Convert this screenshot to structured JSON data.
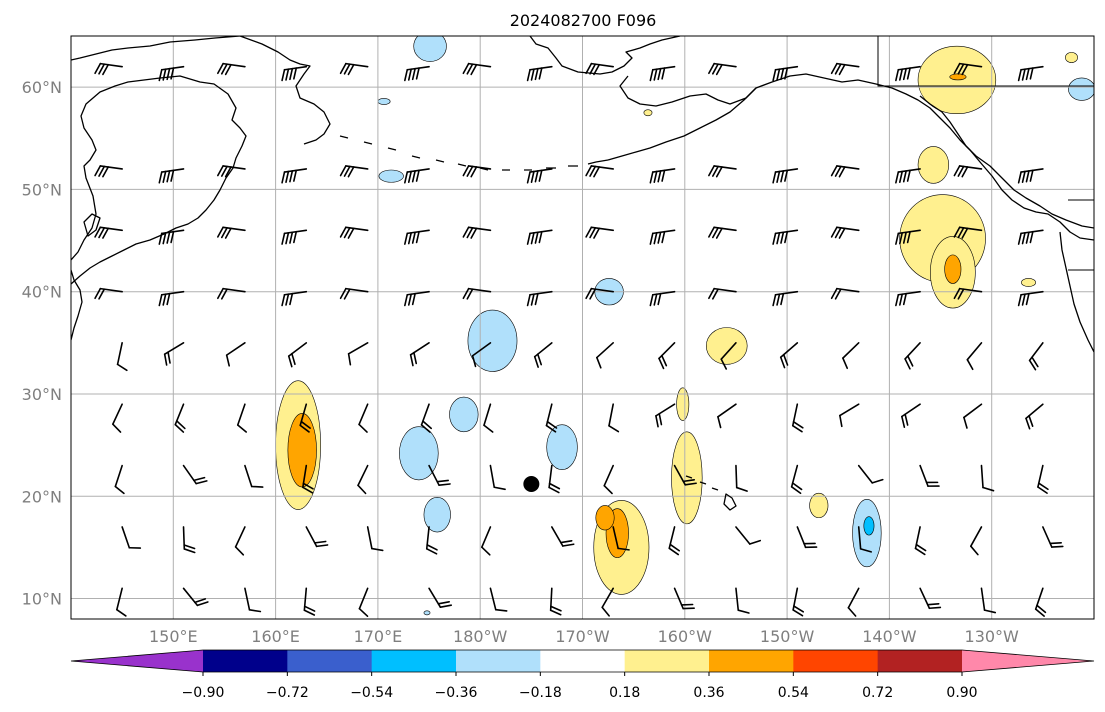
{
  "title": "2024082700 F096",
  "map": {
    "lon_range": [
      140,
      240
    ],
    "lat_range": [
      8,
      65
    ],
    "lat_lines": [
      10,
      20,
      30,
      40,
      50,
      60
    ],
    "lat_labels": [
      "10°N",
      "20°N",
      "30°N",
      "40°N",
      "50°N",
      "60°N"
    ],
    "lon_lines": [
      150,
      160,
      170,
      180,
      190,
      200,
      210,
      220,
      230
    ],
    "lon_labels": [
      "150°E",
      "160°E",
      "170°E",
      "180°W",
      "170°W",
      "160°W",
      "150°W",
      "140°W",
      "130°W"
    ],
    "storm_marker": {
      "lon": 185,
      "lat": 21.2
    }
  },
  "colorbar": {
    "ticks": [
      "−0.90",
      "−0.72",
      "−0.54",
      "−0.36",
      "−0.18",
      "0.18",
      "0.36",
      "0.54",
      "0.72",
      "0.90"
    ],
    "colors": [
      "#9932cc",
      "#00008b",
      "#3a5fcd",
      "#00bfff",
      "#b0e0fb",
      "#ffffff",
      "#fff08f",
      "#ffa500",
      "#ff4500",
      "#b22222",
      "#ff88aa"
    ]
  },
  "fill_colors": {
    "light_blue": "#b0e0fb",
    "blue": "#00bfff",
    "light_yellow": "#fff08f",
    "orange": "#ffa500"
  },
  "anomalies": [
    {
      "lon": 162.2,
      "lat": 25.0,
      "rx": 2.2,
      "ry": 6.3,
      "level": "light_yellow"
    },
    {
      "lon": 162.6,
      "lat": 24.5,
      "rx": 1.4,
      "ry": 3.6,
      "level": "orange"
    },
    {
      "lon": 174.0,
      "lat": 24.2,
      "rx": 1.9,
      "ry": 2.6,
      "level": "light_blue"
    },
    {
      "lon": 175.8,
      "lat": 18.2,
      "rx": 1.3,
      "ry": 1.7,
      "level": "light_blue"
    },
    {
      "lon": 178.4,
      "lat": 28.0,
      "rx": 1.4,
      "ry": 1.7,
      "level": "light_blue"
    },
    {
      "lon": 181.2,
      "lat": 35.2,
      "rx": 2.4,
      "ry": 3.0,
      "level": "light_blue"
    },
    {
      "lon": 192.6,
      "lat": 40.0,
      "rx": 1.4,
      "ry": 1.3,
      "level": "light_blue"
    },
    {
      "lon": 188.0,
      "lat": 24.8,
      "rx": 1.5,
      "ry": 2.2,
      "level": "light_blue"
    },
    {
      "lon": 171.3,
      "lat": 51.3,
      "rx": 1.2,
      "ry": 0.6,
      "level": "light_blue"
    },
    {
      "lon": 170.6,
      "lat": 58.6,
      "rx": 0.6,
      "ry": 0.3,
      "level": "light_blue"
    },
    {
      "lon": 193.8,
      "lat": 15.0,
      "rx": 2.7,
      "ry": 4.6,
      "level": "light_yellow"
    },
    {
      "lon": 193.4,
      "lat": 16.4,
      "rx": 1.1,
      "ry": 2.4,
      "level": "orange"
    },
    {
      "lon": 192.2,
      "lat": 17.9,
      "rx": 0.9,
      "ry": 1.2,
      "level": "orange"
    },
    {
      "lon": 200.2,
      "lat": 21.8,
      "rx": 1.5,
      "ry": 4.5,
      "level": "light_yellow"
    },
    {
      "lon": 199.8,
      "lat": 29.0,
      "rx": 0.6,
      "ry": 1.6,
      "level": "light_yellow"
    },
    {
      "lon": 204.1,
      "lat": 34.7,
      "rx": 2.0,
      "ry": 1.8,
      "level": "light_yellow"
    },
    {
      "lon": 213.1,
      "lat": 19.1,
      "rx": 0.9,
      "ry": 1.2,
      "level": "light_yellow"
    },
    {
      "lon": 217.8,
      "lat": 16.4,
      "rx": 1.4,
      "ry": 3.3,
      "level": "light_blue"
    },
    {
      "lon": 218.0,
      "lat": 17.1,
      "rx": 0.5,
      "ry": 0.9,
      "level": "blue"
    },
    {
      "lon": 226.6,
      "lat": 60.7,
      "rx": 3.8,
      "ry": 3.3,
      "level": "light_yellow"
    },
    {
      "lon": 226.7,
      "lat": 61.0,
      "rx": 0.8,
      "ry": 0.3,
      "level": "orange"
    },
    {
      "lon": 224.3,
      "lat": 52.4,
      "rx": 1.5,
      "ry": 1.8,
      "level": "light_yellow"
    },
    {
      "lon": 225.2,
      "lat": 45.2,
      "rx": 4.2,
      "ry": 4.3,
      "level": "light_yellow"
    },
    {
      "lon": 226.2,
      "lat": 41.9,
      "rx": 2.2,
      "ry": 3.5,
      "level": "light_yellow"
    },
    {
      "lon": 226.2,
      "lat": 42.2,
      "rx": 0.8,
      "ry": 1.4,
      "level": "orange"
    },
    {
      "lon": 233.6,
      "lat": 40.9,
      "rx": 0.7,
      "ry": 0.4,
      "level": "light_yellow"
    },
    {
      "lon": 196.4,
      "lat": 57.5,
      "rx": 0.4,
      "ry": 0.3,
      "level": "light_yellow"
    },
    {
      "lon": 237.8,
      "lat": 62.9,
      "rx": 0.6,
      "ry": 0.5,
      "level": "light_yellow"
    },
    {
      "lon": 238.8,
      "lat": 59.8,
      "rx": 1.3,
      "ry": 1.1,
      "level": "light_blue"
    },
    {
      "lon": 175.1,
      "lat": 64.0,
      "rx": 1.6,
      "ry": 1.5,
      "level": "light_blue"
    },
    {
      "lon": 174.8,
      "lat": 8.6,
      "rx": 0.3,
      "ry": 0.2,
      "level": "light_blue"
    }
  ]
}
